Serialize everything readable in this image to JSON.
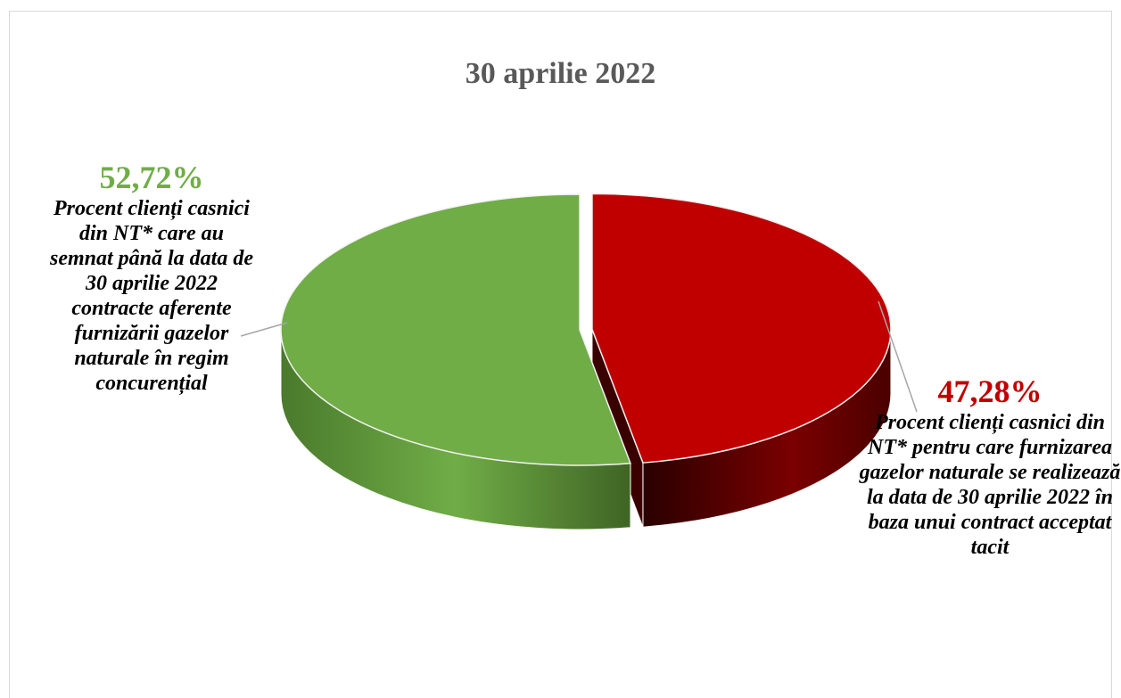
{
  "chart_data": {
    "type": "pie",
    "title": "30 aprilie 2022",
    "slices": [
      {
        "value": 47.28,
        "value_label": "47,28%",
        "label": "Procent clienți casnici din NT* pentru care furnizarea gazelor naturale se realizează la data de 30 aprilie 2022 în baza unui contract acceptat tacit",
        "color": "#c00000",
        "side_color": "#5a0000",
        "exploded": true
      },
      {
        "value": 52.72,
        "value_label": "52,72%",
        "label": "Procent clienți casnici din NT* care au semnat până la data de 30 aprilie 2022 contracte aferente furnizării gazelor naturale în regim concurențial",
        "color": "#70ad47",
        "side_color": "#4e7f31",
        "exploded": false
      }
    ],
    "three_d": true,
    "legend": "none",
    "data_labels": "outside with leader lines"
  }
}
